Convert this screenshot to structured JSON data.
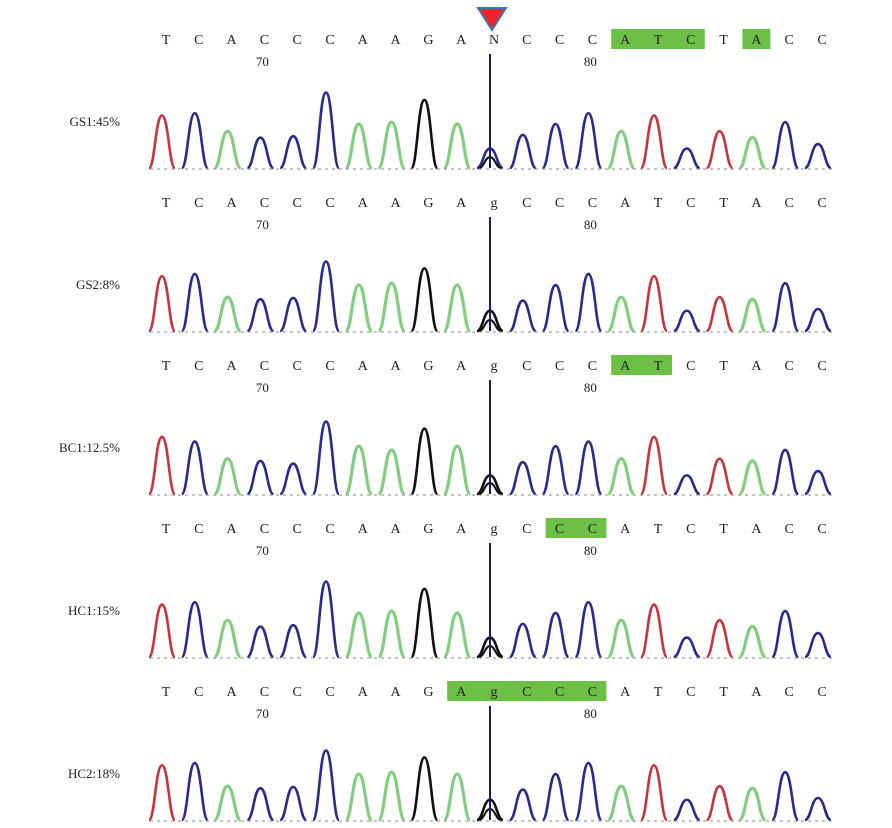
{
  "samples": [
    {
      "label": "GS1:45%",
      "bases": [
        "T",
        "C",
        "A",
        "C",
        "C",
        "C",
        "A",
        "A",
        "G",
        "A",
        "N",
        "C",
        "C",
        "C",
        "A",
        "T",
        "C",
        "T",
        "A",
        "C",
        "C"
      ],
      "highlights": [
        [
          14,
          16
        ],
        [
          18,
          18
        ]
      ]
    },
    {
      "label": "GS2:8%",
      "bases": [
        "T",
        "C",
        "A",
        "C",
        "C",
        "C",
        "A",
        "A",
        "G",
        "A",
        "g",
        "C",
        "C",
        "C",
        "A",
        "T",
        "C",
        "T",
        "A",
        "C",
        "C"
      ],
      "highlights": []
    },
    {
      "label": "BC1:12.5%",
      "bases": [
        "T",
        "C",
        "A",
        "C",
        "C",
        "C",
        "A",
        "A",
        "G",
        "A",
        "g",
        "C",
        "C",
        "C",
        "A",
        "T",
        "C",
        "T",
        "A",
        "C",
        "C"
      ],
      "highlights": [
        [
          14,
          15
        ]
      ]
    },
    {
      "label": "HC1:15%",
      "bases": [
        "T",
        "C",
        "A",
        "C",
        "C",
        "C",
        "A",
        "A",
        "G",
        "A",
        "g",
        "C",
        "C",
        "C",
        "A",
        "T",
        "C",
        "T",
        "A",
        "C",
        "C"
      ],
      "highlights": [
        [
          12,
          13
        ]
      ]
    },
    {
      "label": "HC2:18%",
      "bases": [
        "T",
        "C",
        "A",
        "C",
        "C",
        "C",
        "A",
        "A",
        "G",
        "A",
        "g",
        "C",
        "C",
        "C",
        "A",
        "T",
        "C",
        "T",
        "A",
        "C",
        "C"
      ],
      "highlights": [
        [
          9,
          13
        ]
      ]
    }
  ],
  "position_markers": [
    {
      "label": "70",
      "base_index": 3
    },
    {
      "label": "80",
      "base_index": 13
    }
  ],
  "marker": {
    "type": "triangle-down",
    "base_index": 10,
    "color": "#e8262a",
    "outline": "#3a78a8"
  },
  "colors": {
    "A": "#6cc46a",
    "C": "#2a2a8a",
    "G": "#111111",
    "T": "#c8343c",
    "highlight": "#6cc046",
    "cursor": "#1a1a6e"
  }
}
